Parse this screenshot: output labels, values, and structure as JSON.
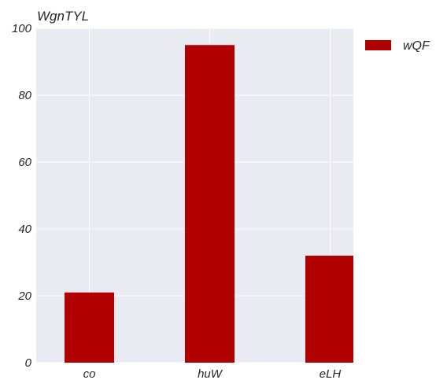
{
  "chart_data": {
    "type": "bar",
    "title": "WgnTYL",
    "xlabel": "",
    "ylabel": "",
    "categories": [
      "co",
      "huW",
      "eLH"
    ],
    "series": [
      {
        "name": "wQF",
        "values": [
          21,
          95,
          32
        ],
        "color": "#b00000"
      }
    ],
    "ylim": [
      0,
      100
    ],
    "yticks": [
      0,
      20,
      40,
      60,
      80,
      100
    ],
    "ytick_labels": [
      "0",
      "20",
      "40",
      "60",
      "80",
      "100"
    ],
    "grid": true,
    "legend_position": "outside-top-right",
    "background_color": "#eaeaf2"
  }
}
